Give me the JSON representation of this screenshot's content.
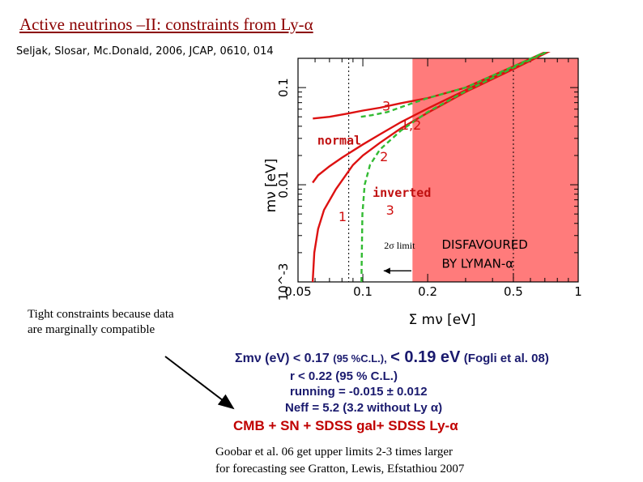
{
  "slide": {
    "title": "Active neutrinos –II:  constraints from Ly-α",
    "citation": "Seljak, Slosar, Mc.Donald, 2006, JCAP, 0610, 014"
  },
  "chart_data": {
    "type": "line",
    "x_scale": "log",
    "y_scale": "log",
    "xlim": [
      0.05,
      1
    ],
    "ylim": [
      0.001,
      0.2
    ],
    "x_ticks": [
      "0.05",
      "0.1",
      "0.2",
      "0.5",
      "1"
    ],
    "y_ticks": [
      "10^-3",
      "0.01",
      "0.1"
    ],
    "ylabel": "mν  [eV]",
    "xlabel": "Σ mν  [eV]",
    "limit_x": 0.17,
    "limit_label": "2σ limit",
    "disfavoured_line1": "DISFAVOURED",
    "disfavoured_line2": "BY LYMAN-α",
    "hierarchy_normal": "normal",
    "hierarchy_inverted": "inverted",
    "curve_labels": {
      "n3": "3",
      "n12": "1,2",
      "n2": "2",
      "i1": "1",
      "i3": "3"
    },
    "colors": {
      "normal": "#dd1111",
      "inverted": "#33bb33",
      "excluded": "#ff7b7b"
    }
  },
  "notes": {
    "tight_1": "Tight constraints because data",
    "tight_2": "are marginally compatible",
    "eq_main": "Σmν (eV) < 0.17",
    "eq_cl": "(95 %C.L.),",
    "eq_fogli_a": "< 0.19 eV",
    "eq_fogli_b": "(Fogli et al. 08)",
    "r_line": "r < 0.22 (95 % C.L.)",
    "running_line": "running = -0.015 ± 0.012",
    "neff_line": "Neff = 5.2 (3.2 without Ly α)",
    "cmb_line": "CMB + SN + SDSS gal+ SDSS Ly-α",
    "foot_1": "Goobar et al. 06  get upper  limits 2-3 times larger",
    "foot_2": "for forecasting see Gratton, Lewis, Efstathiou 2007"
  }
}
